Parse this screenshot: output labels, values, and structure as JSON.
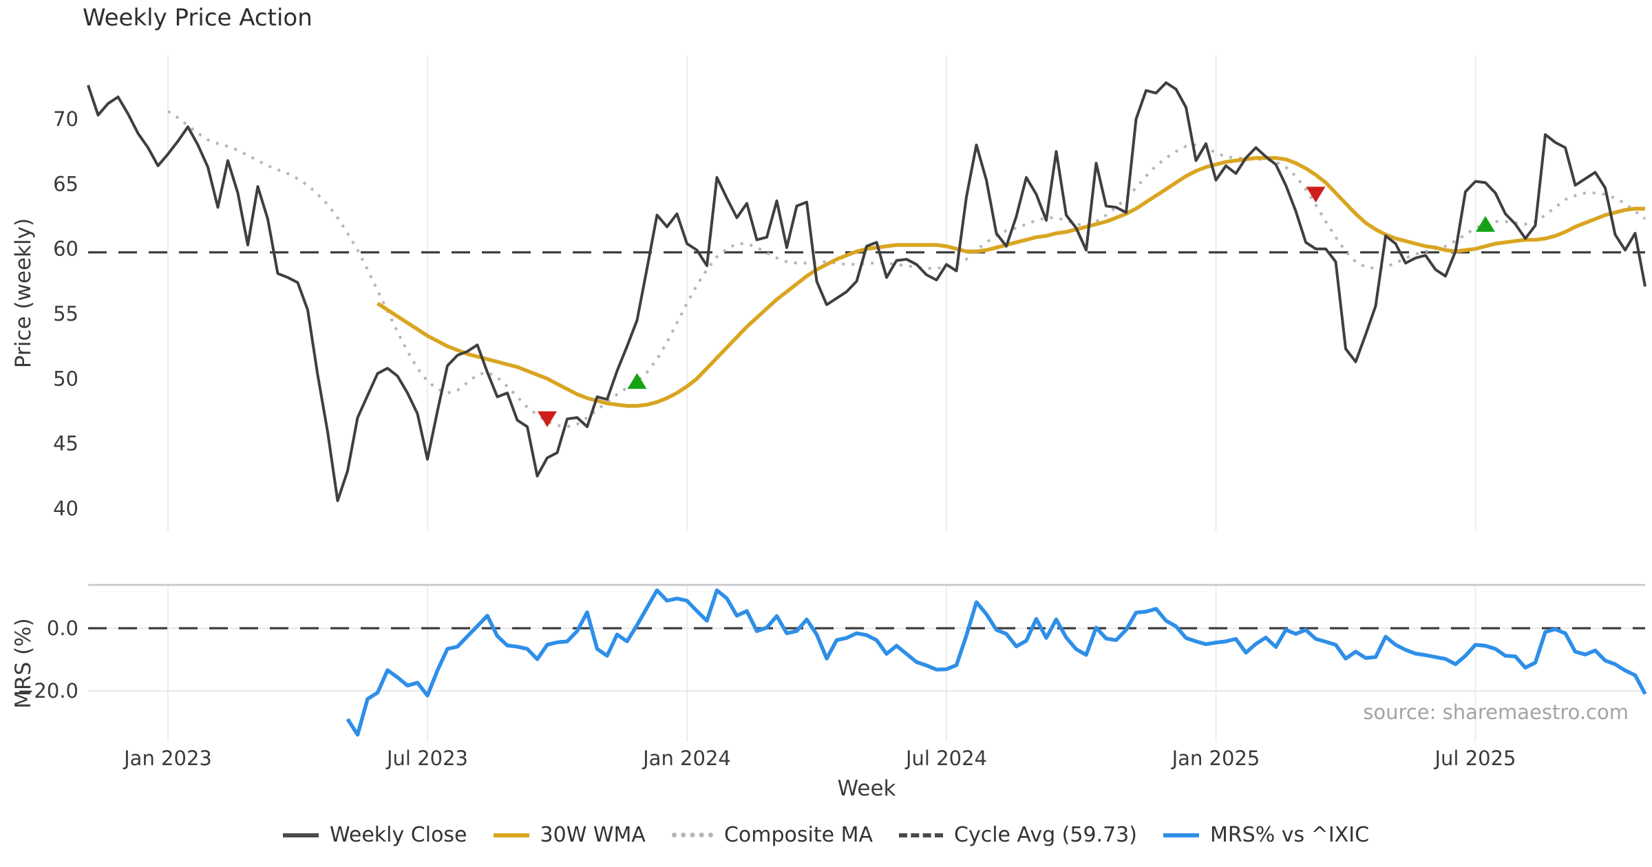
{
  "header": {
    "title": "Weekly Price Action"
  },
  "axes": {
    "price_label": "Price (weekly)",
    "mrs_label": "MRS (%)",
    "x_label": "Week"
  },
  "source_note": "source: sharemaestro.com",
  "legend": {
    "items": [
      {
        "label": "Weekly Close",
        "swatch": "solid-dark"
      },
      {
        "label": "30W WMA",
        "swatch": "solid-gold"
      },
      {
        "label": "Composite MA",
        "swatch": "dotted-gray"
      },
      {
        "label": "Cycle Avg (59.73)",
        "swatch": "dashed-dark"
      },
      {
        "label": "MRS% vs ^IXIC",
        "swatch": "solid-blue"
      }
    ]
  },
  "colors": {
    "close": "#3f3f3f",
    "wma": "#d9a521",
    "composite": "#b5b5b5",
    "cycle_avg": "#3d3d3d",
    "mrs": "#2e8fe8",
    "sell_marker": "#cf1d1d",
    "buy_marker": "#15a315",
    "grid": "#ececf1",
    "mrs_grid": "#e8e8ec",
    "mrs_top_border": "#c4c4c9",
    "tick_text": "#3a3a3a",
    "source_text": "#a3a3a3"
  },
  "chart_data": [
    {
      "type": "line",
      "panel": "price",
      "title": "Weekly Price Action",
      "ylabel": "Price (weekly)",
      "ylim": [
        38.3,
        74.9
      ],
      "yticks": [
        40,
        45,
        50,
        55,
        60,
        65,
        70
      ],
      "grid": "vertical-only",
      "legend_position": "bottom-center",
      "x_start_date": "2022-11-07",
      "x_frequency": "weekly",
      "xticks": [
        {
          "index": 8,
          "label": "Jan 2023"
        },
        {
          "index": 34,
          "label": "Jul 2023"
        },
        {
          "index": 60,
          "label": "Jan 2024"
        },
        {
          "index": 86,
          "label": "Jul 2024"
        },
        {
          "index": 113,
          "label": "Jan 2025"
        },
        {
          "index": 139,
          "label": "Jul 2025"
        }
      ],
      "cycle_avg": 59.73,
      "series": [
        {
          "name": "Weekly Close",
          "style": "solid",
          "values": [
            72.6,
            70.3,
            71.2,
            71.7,
            70.4,
            68.9,
            67.8,
            66.4,
            67.3,
            68.3,
            69.4,
            68.0,
            66.3,
            63.2,
            66.8,
            64.3,
            60.3,
            64.8,
            62.3,
            58.1,
            57.8,
            57.4,
            55.3,
            50.3,
            45.9,
            40.6,
            42.9,
            47.0,
            48.7,
            50.4,
            50.8,
            50.2,
            48.9,
            47.3,
            43.8,
            47.5,
            51.0,
            51.8,
            52.1,
            52.6,
            50.5,
            48.6,
            48.9,
            46.8,
            46.3,
            42.5,
            43.9,
            44.3,
            46.9,
            47.0,
            46.3,
            48.6,
            48.4,
            50.6,
            52.5,
            54.5,
            58.5,
            62.6,
            61.7,
            62.7,
            60.4,
            59.9,
            58.7,
            65.5,
            63.9,
            62.4,
            63.5,
            60.7,
            60.9,
            63.7,
            60.1,
            63.3,
            63.6,
            57.5,
            55.7,
            56.2,
            56.7,
            57.5,
            60.2,
            60.5,
            57.8,
            59.1,
            59.2,
            58.8,
            58.0,
            57.6,
            58.8,
            58.3,
            64.0,
            68.0,
            65.3,
            61.2,
            60.2,
            62.5,
            65.5,
            64.2,
            62.2,
            67.5,
            62.6,
            61.6,
            59.9,
            66.6,
            63.3,
            63.2,
            62.8,
            70.0,
            72.2,
            72.0,
            72.8,
            72.3,
            70.9,
            66.8,
            68.1,
            65.3,
            66.4,
            65.8,
            67.0,
            67.8,
            67.1,
            66.5,
            64.9,
            62.9,
            60.5,
            60.0,
            60.0,
            59.0,
            52.3,
            51.3,
            53.4,
            55.6,
            61.0,
            60.4,
            58.9,
            59.3,
            59.5,
            58.4,
            57.9,
            59.8,
            64.4,
            65.2,
            65.1,
            64.3,
            62.7,
            61.9,
            60.8,
            61.8,
            68.8,
            68.2,
            67.8,
            64.9,
            65.4,
            65.9,
            64.7,
            61.1,
            59.9,
            61.2,
            57.1
          ]
        },
        {
          "name": "30W WMA",
          "style": "solid",
          "values": [
            null,
            null,
            null,
            null,
            null,
            null,
            null,
            null,
            null,
            null,
            null,
            null,
            null,
            null,
            null,
            null,
            null,
            null,
            null,
            null,
            null,
            null,
            null,
            null,
            null,
            null,
            null,
            null,
            null,
            55.8,
            55.3,
            54.8,
            54.3,
            53.8,
            53.3,
            52.9,
            52.5,
            52.2,
            51.9,
            51.7,
            51.5,
            51.3,
            51.1,
            50.9,
            50.6,
            50.3,
            50.0,
            49.6,
            49.2,
            48.8,
            48.5,
            48.3,
            48.1,
            48.0,
            47.9,
            47.9,
            48.0,
            48.2,
            48.5,
            48.9,
            49.4,
            50.0,
            50.8,
            51.6,
            52.4,
            53.2,
            54.0,
            54.7,
            55.4,
            56.1,
            56.7,
            57.3,
            57.9,
            58.4,
            58.8,
            59.2,
            59.5,
            59.8,
            60.0,
            60.1,
            60.2,
            60.3,
            60.3,
            60.3,
            60.3,
            60.3,
            60.2,
            60.0,
            59.8,
            59.8,
            59.9,
            60.1,
            60.3,
            60.5,
            60.7,
            60.9,
            61.0,
            61.2,
            61.3,
            61.5,
            61.7,
            61.9,
            62.1,
            62.4,
            62.7,
            63.1,
            63.6,
            64.1,
            64.6,
            65.1,
            65.6,
            66.0,
            66.3,
            66.5,
            66.7,
            66.8,
            66.9,
            67.0,
            67.0,
            67.0,
            66.9,
            66.6,
            66.2,
            65.7,
            65.1,
            64.3,
            63.5,
            62.7,
            62.0,
            61.5,
            61.1,
            60.8,
            60.6,
            60.4,
            60.2,
            60.1,
            59.9,
            59.8,
            59.9,
            60.0,
            60.2,
            60.4,
            60.5,
            60.6,
            60.7,
            60.7,
            60.8,
            61.0,
            61.3,
            61.7,
            62.0,
            62.3,
            62.6,
            62.8,
            63.0,
            63.1,
            63.1
          ]
        },
        {
          "name": "Composite MA",
          "style": "dotted",
          "values": [
            null,
            null,
            null,
            null,
            null,
            null,
            null,
            null,
            70.6,
            70.1,
            69.5,
            68.9,
            68.4,
            68.1,
            67.9,
            67.6,
            67.2,
            66.8,
            66.4,
            66.1,
            65.8,
            65.4,
            64.9,
            64.2,
            63.4,
            62.4,
            61.2,
            59.9,
            58.4,
            56.8,
            55.2,
            53.6,
            52.1,
            50.8,
            49.8,
            49.2,
            48.9,
            49.1,
            49.7,
            50.3,
            50.5,
            50.1,
            49.4,
            48.6,
            47.8,
            47.2,
            46.7,
            46.4,
            46.3,
            46.5,
            47.0,
            47.6,
            48.2,
            48.8,
            49.3,
            49.8,
            50.5,
            51.5,
            52.8,
            54.3,
            55.8,
            57.2,
            58.4,
            59.4,
            60.0,
            60.4,
            60.4,
            60.1,
            59.7,
            59.3,
            59.0,
            58.9,
            58.9,
            59.0,
            59.0,
            58.9,
            58.8,
            58.8,
            58.9,
            58.9,
            58.9,
            58.8,
            58.7,
            58.6,
            58.5,
            58.5,
            58.6,
            58.8,
            59.2,
            59.9,
            60.5,
            61.0,
            61.4,
            61.6,
            61.9,
            62.2,
            62.4,
            62.4,
            62.2,
            61.9,
            61.8,
            62.1,
            62.6,
            63.2,
            63.9,
            64.7,
            65.6,
            66.4,
            67.0,
            67.5,
            67.9,
            68.0,
            67.8,
            67.4,
            67.1,
            67.0,
            67.0,
            66.9,
            66.9,
            66.7,
            66.3,
            65.6,
            64.6,
            63.4,
            62.1,
            60.9,
            59.8,
            59.0,
            58.6,
            58.5,
            58.6,
            58.9,
            59.3,
            59.6,
            59.8,
            60.0,
            60.2,
            60.6,
            61.1,
            61.6,
            61.9,
            62.1,
            62.1,
            62.0,
            61.9,
            62.1,
            62.6,
            63.2,
            63.8,
            64.1,
            64.3,
            64.3,
            64.2,
            63.9,
            63.5,
            62.9,
            62.3
          ]
        }
      ],
      "markers": {
        "sell": [
          {
            "week_index": 46,
            "date": "2023-09-25",
            "value": 46.9
          },
          {
            "week_index": 123,
            "date": "2025-03-17",
            "value": 64.2
          }
        ],
        "buy": [
          {
            "week_index": 55,
            "date": "2023-11-27",
            "value": 49.8
          },
          {
            "week_index": 140,
            "date": "2025-07-14",
            "value": 61.9
          }
        ]
      }
    },
    {
      "type": "line",
      "panel": "mrs",
      "ylabel": "MRS (%)",
      "ylim": [
        -35.5,
        13.8
      ],
      "yticks": [
        0.0,
        -20.0
      ],
      "ytick_labels": [
        "0.0",
        "−20.0"
      ],
      "zero_line_dashed": true,
      "series": [
        {
          "name": "MRS% vs ^IXIC",
          "style": "solid",
          "values": [
            null,
            null,
            null,
            null,
            null,
            null,
            null,
            null,
            null,
            null,
            null,
            null,
            null,
            null,
            null,
            null,
            null,
            null,
            null,
            null,
            null,
            null,
            null,
            null,
            null,
            null,
            -29.0,
            -34.0,
            -22.6,
            -20.6,
            -13.4,
            -15.7,
            -18.3,
            -17.4,
            -21.5,
            -13.5,
            -6.6,
            -5.9,
            -2.6,
            0.7,
            4.0,
            -2.5,
            -5.5,
            -5.9,
            -6.6,
            -9.9,
            -5.3,
            -4.5,
            -4.2,
            -0.9,
            5.1,
            -6.6,
            -8.8,
            -2.0,
            -4.2,
            1.0,
            6.6,
            12.1,
            8.8,
            9.5,
            8.8,
            5.5,
            2.4,
            12.1,
            9.5,
            4.0,
            5.5,
            -0.9,
            0.2,
            3.9,
            -1.6,
            -0.9,
            2.8,
            -2.0,
            -9.7,
            -3.8,
            -3.1,
            -1.6,
            -2.2,
            -3.8,
            -8.2,
            -5.6,
            -8.2,
            -10.8,
            -11.9,
            -13.2,
            -13.1,
            -11.8,
            -2.3,
            8.3,
            4.5,
            -0.5,
            -1.8,
            -5.8,
            -4.0,
            3.0,
            -3.1,
            2.8,
            -3.0,
            -6.7,
            -8.5,
            0.2,
            -3.3,
            -3.8,
            -0.5,
            5.0,
            5.3,
            6.2,
            2.4,
            0.6,
            -3.1,
            -4.2,
            -5.1,
            -4.6,
            -4.2,
            -3.4,
            -7.8,
            -5.0,
            -3.0,
            -6.0,
            -0.5,
            -1.8,
            -0.5,
            -3.4,
            -4.3,
            -5.3,
            -9.7,
            -7.5,
            -9.5,
            -9.2,
            -2.7,
            -5.3,
            -6.9,
            -8.1,
            -8.6,
            -9.2,
            -9.8,
            -11.5,
            -8.8,
            -5.3,
            -5.6,
            -6.6,
            -8.8,
            -9.0,
            -12.6,
            -11.0,
            -1.2,
            -0.3,
            -1.6,
            -7.5,
            -8.4,
            -7.1,
            -10.3,
            -11.5,
            -13.5,
            -15.0,
            -21.0
          ]
        }
      ]
    }
  ]
}
